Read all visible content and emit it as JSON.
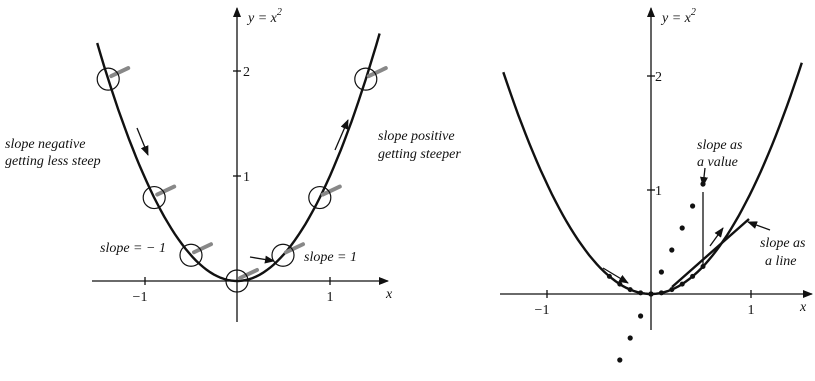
{
  "left": {
    "y_label": {
      "main": "y = x",
      "exponent": "2"
    },
    "x_label": "x",
    "x_ticks": [
      "−1",
      "1"
    ],
    "y_ticks": [
      "1",
      "2"
    ],
    "annotations": {
      "negative": [
        "slope negative",
        "getting less steep"
      ],
      "positive": [
        "slope positive",
        "getting steeper"
      ],
      "minus_one": "slope = − 1",
      "one": "slope = 1"
    }
  },
  "right": {
    "y_label": {
      "main": "y = x",
      "exponent": "2"
    },
    "x_label": "x",
    "x_ticks": [
      "−1",
      "1"
    ],
    "y_ticks": [
      "1",
      "2"
    ],
    "annotations": {
      "value": [
        "slope as",
        "a value"
      ],
      "line": [
        "slope as",
        "a line"
      ]
    }
  }
}
